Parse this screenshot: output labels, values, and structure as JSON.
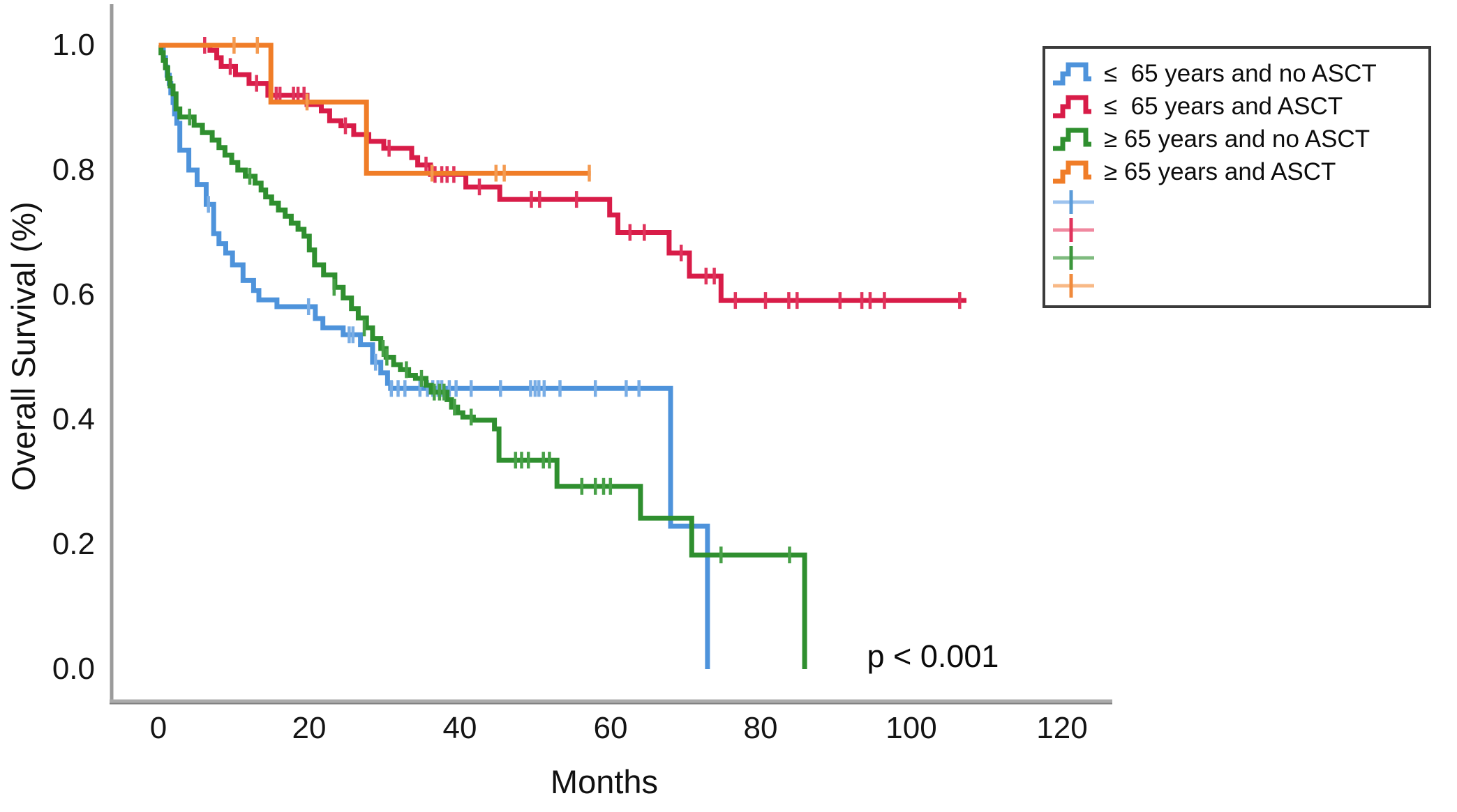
{
  "figure": {
    "y_axis": {
      "label": "Overall Survival (%)",
      "ticks": [
        "1.0",
        "0.8",
        "0.6",
        "0.4",
        "0.2",
        "0.0"
      ]
    },
    "x_axis": {
      "label": "Months",
      "ticks": [
        "0",
        "20",
        "40",
        "60",
        "80",
        "100",
        "120"
      ]
    },
    "annotation": "p < 0.001",
    "legend": {
      "entries": [
        {
          "label": "≤  65 years and no ASCT",
          "color": "#4E93DB"
        },
        {
          "label": "≤  65 years and ASCT",
          "color": "#D81C48"
        },
        {
          "label": "≥ 65 years and no ASCT",
          "color": "#2F8F2F"
        },
        {
          "label": "≥ 65 years and ASCT",
          "color": "#F07D28"
        }
      ],
      "censor_entries": [
        {
          "line": "#9DC3EE",
          "tick": "#5B9BD8"
        },
        {
          "line": "#F0889F",
          "tick": "#E0335C"
        },
        {
          "line": "#7FBB7F",
          "tick": "#3C963C"
        },
        {
          "line": "#F8B986",
          "tick": "#F08A3C"
        }
      ]
    }
  },
  "chart_data": {
    "type": "line",
    "subtype": "kaplan-meier-step",
    "title": "",
    "xlabel": "Months",
    "ylabel": "Overall Survival (%)",
    "xlim": [
      0,
      120
    ],
    "ylim": [
      0.0,
      1.0
    ],
    "x_ticks": [
      0,
      20,
      40,
      60,
      80,
      100,
      120
    ],
    "y_ticks": [
      1.0,
      0.8,
      0.6,
      0.4,
      0.2,
      0.0
    ],
    "p_value": "p < 0.001",
    "grid": false,
    "legend_position": "upper right",
    "series": [
      {
        "id": "le65_no_asct",
        "name": "≤ 65 years and no ASCT",
        "color": "#4E93DB",
        "censor_color": "#79ADE5",
        "steps": [
          [
            0.6,
            0.98
          ],
          [
            0.9,
            0.965
          ],
          [
            1.1,
            0.952
          ],
          [
            1.4,
            0.939
          ],
          [
            1.6,
            0.924
          ],
          [
            1.9,
            0.908
          ],
          [
            2.1,
            0.89
          ],
          [
            2.4,
            0.875
          ],
          [
            2.8,
            0.832
          ],
          [
            4.0,
            0.8
          ],
          [
            5.1,
            0.777
          ],
          [
            6.3,
            0.745
          ],
          [
            7.3,
            0.698
          ],
          [
            8.0,
            0.682
          ],
          [
            8.9,
            0.667
          ],
          [
            9.8,
            0.648
          ],
          [
            11.2,
            0.623
          ],
          [
            12.6,
            0.607
          ],
          [
            13.3,
            0.592
          ],
          [
            15.7,
            0.581
          ],
          [
            20.8,
            0.562
          ],
          [
            21.8,
            0.547
          ],
          [
            24.5,
            0.536
          ],
          [
            26.8,
            0.52
          ],
          [
            28.4,
            0.492
          ],
          [
            29.5,
            0.475
          ],
          [
            30.4,
            0.458
          ],
          [
            30.8,
            0.45
          ],
          [
            68.0,
            0.229
          ],
          [
            72.9,
            0.0
          ]
        ],
        "censors": [
          [
            6.6,
            0.745
          ],
          [
            19.9,
            0.581
          ],
          [
            25.3,
            0.536
          ],
          [
            25.8,
            0.536
          ],
          [
            28.8,
            0.492
          ],
          [
            30.9,
            0.45
          ],
          [
            31.8,
            0.45
          ],
          [
            32.7,
            0.45
          ],
          [
            34.7,
            0.45
          ],
          [
            35.7,
            0.45
          ],
          [
            36.4,
            0.45
          ],
          [
            37.1,
            0.45
          ],
          [
            37.6,
            0.45
          ],
          [
            38.6,
            0.45
          ],
          [
            39.5,
            0.45
          ],
          [
            41.5,
            0.45
          ],
          [
            45.4,
            0.45
          ],
          [
            49.4,
            0.45
          ],
          [
            50.0,
            0.45
          ],
          [
            50.5,
            0.45
          ],
          [
            51.2,
            0.45
          ],
          [
            53.3,
            0.45
          ],
          [
            58.0,
            0.45
          ],
          [
            62.1,
            0.45
          ],
          [
            63.8,
            0.45
          ]
        ],
        "end": 72.9
      },
      {
        "id": "le65_asct",
        "name": "≤ 65 years and ASCT",
        "color": "#D81C48",
        "censor_color": "#E0335C",
        "steps": [
          [
            6.8,
            0.992
          ],
          [
            7.7,
            0.98
          ],
          [
            8.3,
            0.966
          ],
          [
            10.2,
            0.953
          ],
          [
            12.0,
            0.939
          ],
          [
            14.5,
            0.92
          ],
          [
            19.7,
            0.905
          ],
          [
            21.6,
            0.895
          ],
          [
            22.7,
            0.879
          ],
          [
            24.2,
            0.871
          ],
          [
            25.9,
            0.857
          ],
          [
            27.9,
            0.846
          ],
          [
            29.9,
            0.835
          ],
          [
            33.6,
            0.82
          ],
          [
            34.4,
            0.808
          ],
          [
            36.1,
            0.793
          ],
          [
            40.8,
            0.773
          ],
          [
            45.3,
            0.753
          ],
          [
            59.9,
            0.728
          ],
          [
            61.0,
            0.7
          ],
          [
            67.8,
            0.667
          ],
          [
            70.5,
            0.63
          ],
          [
            74.7,
            0.591
          ]
        ],
        "censors": [
          [
            6.1,
            1.0
          ],
          [
            9.5,
            0.966
          ],
          [
            13.0,
            0.939
          ],
          [
            15.6,
            0.92
          ],
          [
            16.1,
            0.92
          ],
          [
            17.9,
            0.92
          ],
          [
            18.5,
            0.92
          ],
          [
            19.3,
            0.92
          ],
          [
            24.8,
            0.871
          ],
          [
            30.6,
            0.835
          ],
          [
            35.5,
            0.808
          ],
          [
            36.7,
            0.793
          ],
          [
            37.6,
            0.793
          ],
          [
            38.3,
            0.793
          ],
          [
            39.2,
            0.793
          ],
          [
            42.6,
            0.773
          ],
          [
            49.5,
            0.753
          ],
          [
            50.6,
            0.753
          ],
          [
            55.5,
            0.753
          ],
          [
            62.6,
            0.7
          ],
          [
            64.5,
            0.7
          ],
          [
            69.4,
            0.667
          ],
          [
            72.7,
            0.63
          ],
          [
            73.8,
            0.63
          ],
          [
            76.6,
            0.591
          ],
          [
            80.6,
            0.591
          ],
          [
            83.7,
            0.591
          ],
          [
            84.8,
            0.591
          ],
          [
            90.5,
            0.591
          ],
          [
            93.4,
            0.591
          ],
          [
            94.5,
            0.591
          ],
          [
            96.4,
            0.591
          ],
          [
            106.4,
            0.591
          ]
        ],
        "end": 107.3
      },
      {
        "id": "ge65_no_asct",
        "name": "≥ 65 years and no ASCT",
        "color": "#2F8F2F",
        "censor_color": "#47A047",
        "steps": [
          [
            0.3,
            0.988
          ],
          [
            0.6,
            0.976
          ],
          [
            0.9,
            0.964
          ],
          [
            1.2,
            0.947
          ],
          [
            1.5,
            0.935
          ],
          [
            1.9,
            0.922
          ],
          [
            2.3,
            0.898
          ],
          [
            2.8,
            0.885
          ],
          [
            4.7,
            0.872
          ],
          [
            5.8,
            0.86
          ],
          [
            7.1,
            0.848
          ],
          [
            8.0,
            0.836
          ],
          [
            8.8,
            0.824
          ],
          [
            9.7,
            0.812
          ],
          [
            10.5,
            0.8
          ],
          [
            11.5,
            0.79
          ],
          [
            12.8,
            0.779
          ],
          [
            13.6,
            0.768
          ],
          [
            14.2,
            0.757
          ],
          [
            15.0,
            0.747
          ],
          [
            15.9,
            0.736
          ],
          [
            16.8,
            0.726
          ],
          [
            17.6,
            0.715
          ],
          [
            18.5,
            0.705
          ],
          [
            19.3,
            0.694
          ],
          [
            20.0,
            0.672
          ],
          [
            20.7,
            0.648
          ],
          [
            21.9,
            0.632
          ],
          [
            23.4,
            0.612
          ],
          [
            24.5,
            0.595
          ],
          [
            25.6,
            0.578
          ],
          [
            26.5,
            0.563
          ],
          [
            27.6,
            0.547
          ],
          [
            28.4,
            0.53
          ],
          [
            29.5,
            0.514
          ],
          [
            30.2,
            0.5
          ],
          [
            31.2,
            0.488
          ],
          [
            32.1,
            0.48
          ],
          [
            33.2,
            0.471
          ],
          [
            34.1,
            0.466
          ],
          [
            35.5,
            0.455
          ],
          [
            36.2,
            0.444
          ],
          [
            38.3,
            0.432
          ],
          [
            38.9,
            0.42
          ],
          [
            39.7,
            0.411
          ],
          [
            40.4,
            0.404
          ],
          [
            41.8,
            0.399
          ],
          [
            44.6,
            0.385
          ],
          [
            45.2,
            0.335
          ],
          [
            52.9,
            0.293
          ],
          [
            64.0,
            0.242
          ],
          [
            70.8,
            0.183
          ],
          [
            85.8,
            0.0
          ]
        ],
        "censors": [
          [
            4.1,
            0.885
          ],
          [
            12.1,
            0.79
          ],
          [
            23.3,
            0.612
          ],
          [
            27.3,
            0.547
          ],
          [
            29.8,
            0.514
          ],
          [
            30.3,
            0.5
          ],
          [
            32.9,
            0.48
          ],
          [
            34.9,
            0.466
          ],
          [
            36.6,
            0.444
          ],
          [
            37.3,
            0.444
          ],
          [
            37.9,
            0.444
          ],
          [
            39.3,
            0.42
          ],
          [
            41.5,
            0.404
          ],
          [
            47.4,
            0.335
          ],
          [
            48.2,
            0.335
          ],
          [
            49.1,
            0.335
          ],
          [
            51.1,
            0.335
          ],
          [
            51.9,
            0.335
          ],
          [
            56.2,
            0.293
          ],
          [
            58.0,
            0.293
          ],
          [
            59.1,
            0.293
          ],
          [
            60.0,
            0.293
          ],
          [
            74.7,
            0.183
          ],
          [
            83.8,
            0.183
          ]
        ],
        "end": 85.8
      },
      {
        "id": "ge65_asct",
        "name": "≥ 65 years and ASCT",
        "color": "#F07D28",
        "censor_color": "#F49A50",
        "steps": [
          [
            14.9,
            0.909
          ],
          [
            27.6,
            0.795
          ]
        ],
        "censors": [
          [
            10.0,
            1.0
          ],
          [
            13.1,
            1.0
          ],
          [
            19.7,
            0.909
          ],
          [
            36.3,
            0.795
          ],
          [
            44.8,
            0.795
          ],
          [
            45.9,
            0.795
          ],
          [
            57.2,
            0.795
          ]
        ],
        "end": 57.4
      }
    ]
  }
}
